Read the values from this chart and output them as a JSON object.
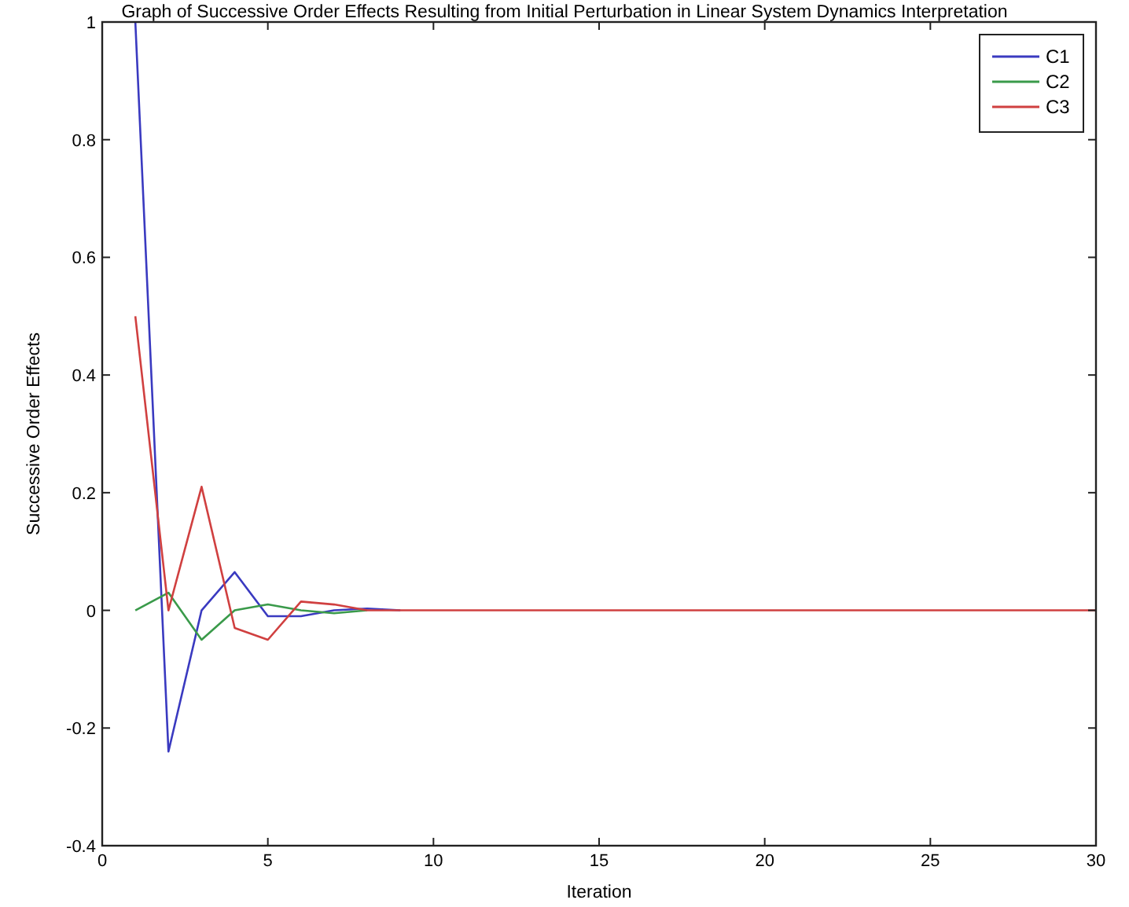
{
  "chart_data": {
    "type": "line",
    "title": "Graph of Successive Order Effects Resulting from Initial Perturbation in Linear System Dynamics Interpretation",
    "xlabel": "Iteration",
    "ylabel": "Successive Order Effects",
    "x": [
      1,
      2,
      3,
      4,
      5,
      6,
      7,
      8,
      9,
      10,
      11,
      12,
      13,
      14,
      15,
      16,
      17,
      18,
      19,
      20,
      21,
      22,
      23,
      24,
      25,
      26,
      27,
      28,
      29,
      30
    ],
    "series": [
      {
        "name": "C1",
        "color": "#3a3ac0",
        "values": [
          1,
          -0.24,
          0,
          0.065,
          -0.01,
          -0.01,
          0,
          0.003,
          0,
          null,
          null,
          null,
          null,
          null,
          null,
          null,
          null,
          null,
          null,
          null,
          null,
          null,
          null,
          null,
          null,
          null,
          null,
          null,
          null,
          null
        ]
      },
      {
        "name": "C2",
        "color": "#3a9a4a",
        "values": [
          0,
          0.03,
          -0.05,
          0,
          0.01,
          0,
          -0.005,
          0,
          null,
          null,
          null,
          null,
          null,
          null,
          null,
          null,
          null,
          null,
          null,
          null,
          null,
          null,
          null,
          null,
          null,
          null,
          null,
          null,
          null,
          null
        ]
      },
      {
        "name": "C3",
        "color": "#d04040",
        "values": [
          0.5,
          0,
          0.21,
          -0.03,
          -0.05,
          0.015,
          0.01,
          0,
          0,
          0,
          0,
          0,
          0,
          0,
          0,
          0,
          0,
          0,
          0,
          0,
          0,
          0,
          0,
          0,
          0,
          0,
          0,
          0,
          0,
          0
        ]
      }
    ],
    "xlim": [
      0,
      30
    ],
    "xticks": [
      0,
      5,
      10,
      15,
      20,
      25,
      30
    ],
    "ylim": [
      -0.4,
      1
    ],
    "yticks": [
      -0.4,
      -0.2,
      0,
      0.2,
      0.4,
      0.6,
      0.8,
      1
    ],
    "legend": "top right",
    "grid": false
  }
}
